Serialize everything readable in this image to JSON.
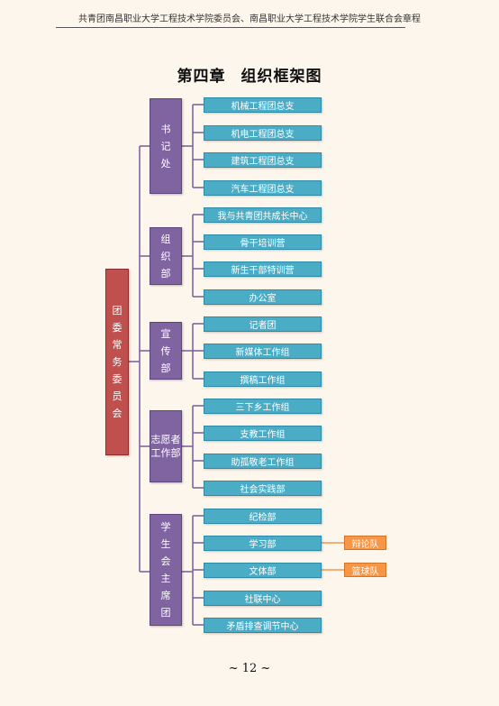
{
  "header": {
    "text": "共青团南昌职业大学工程技术学院委员会、南昌职业大学工程技术学院学生联合会章程"
  },
  "title": "第四章 组织框架图",
  "root": {
    "label": "团委常务委员会"
  },
  "departments": [
    {
      "label": "书记处",
      "items": [
        "机械工程团总支",
        "机电工程团总支",
        "建筑工程团总支",
        "汽车工程团总支"
      ]
    },
    {
      "label": "组织部",
      "items": [
        "我与共青团共成长中心",
        "骨干培训营",
        "新生干部特训营",
        "办公室"
      ]
    },
    {
      "label": "宣传部",
      "items": [
        "记者团",
        "新媒体工作组",
        "撰稿工作组"
      ]
    },
    {
      "label": "志愿者工作部",
      "items": [
        "三下乡工作组",
        "支教工作组",
        "助孤敬老工作组",
        "社会实践部"
      ]
    },
    {
      "label": "学生会主席团",
      "items": [
        "纪检部",
        "学习部",
        "文体部",
        "社联中心",
        "矛盾排查调节中心"
      ]
    }
  ],
  "sub_units": [
    {
      "label": "辩论队",
      "parent": "学习部"
    },
    {
      "label": "篮球队",
      "parent": "文体部"
    }
  ],
  "colors": {
    "root": "#c0504d",
    "department": "#8064a2",
    "item": "#4bacc6",
    "sub_unit": "#f79646",
    "connector": "#8064a2"
  },
  "page_number": "~ 12 ~"
}
